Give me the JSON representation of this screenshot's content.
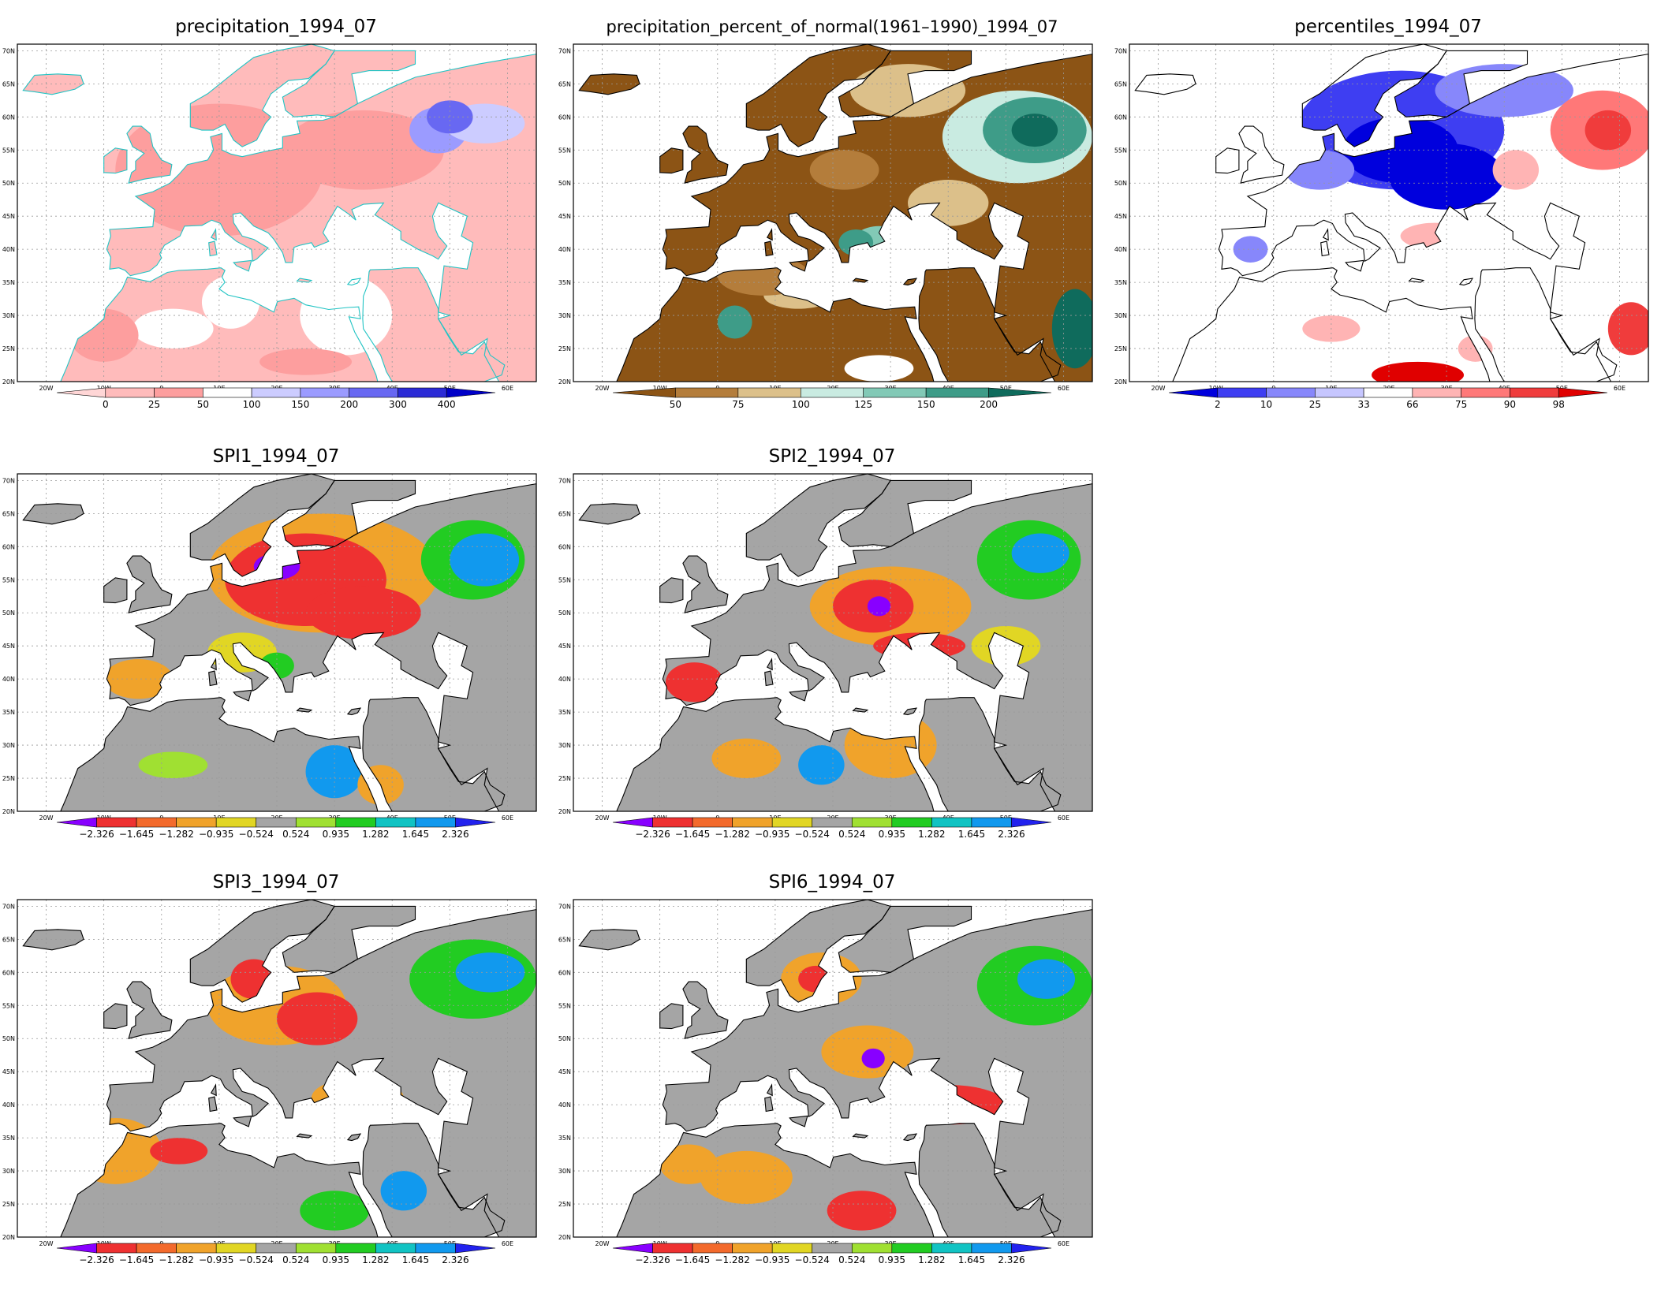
{
  "axes": {
    "lon_labels": [
      "20W",
      "10W",
      "0",
      "10E",
      "20E",
      "30E",
      "40E",
      "50E",
      "60E"
    ],
    "lat_labels": [
      "20N",
      "25N",
      "30N",
      "35N",
      "40N",
      "45N",
      "50N",
      "55N",
      "60N",
      "65N",
      "70N"
    ]
  },
  "legends": {
    "precip": {
      "labels": [
        "0",
        "25",
        "50",
        "100",
        "150",
        "200",
        "300",
        "400"
      ],
      "colors": [
        "#ffd6d6",
        "#ffbbbb",
        "#fd9e9e",
        "#ffffff",
        "#ccccff",
        "#9b9bff",
        "#6868f2",
        "#2b2bd6",
        "#0000c8"
      ]
    },
    "pct": {
      "labels": [
        "50",
        "75",
        "100",
        "125",
        "150",
        "200"
      ],
      "colors": [
        "#8c5415",
        "#b47d3b",
        "#dcc08a",
        "#c9ebe1",
        "#82c9b6",
        "#3e9c88",
        "#0f6b5c"
      ]
    },
    "perc": {
      "labels": [
        "2",
        "10",
        "25",
        "33",
        "66",
        "75",
        "90",
        "98"
      ],
      "colors": [
        "#0000dd",
        "#3e3ef2",
        "#8787fb",
        "#c6c6ff",
        "#ffffff",
        "#ffb4b4",
        "#ff7878",
        "#f03c3c",
        "#e00000"
      ]
    },
    "spi": {
      "labels": [
        "−2.326",
        "−1.645",
        "−1.282",
        "−0.935",
        "−0.524",
        "0.524",
        "0.935",
        "1.282",
        "1.645",
        "2.326"
      ],
      "colors": [
        "#8800ff",
        "#ee3131",
        "#f36a2c",
        "#f0a32b",
        "#e1d624",
        "#a5a5a5",
        "#a0e032",
        "#22cc22",
        "#11c3c3",
        "#1199ee",
        "#2222ee"
      ]
    }
  },
  "panels": [
    {
      "id": "p1",
      "title": "precipitation_1994_07",
      "legend": "precip",
      "coast": "#22c4c4"
    },
    {
      "id": "p2",
      "title": "precipitation_percent_of_normal(1961–1990)_1994_07",
      "legend": "pct",
      "coast": "#000000"
    },
    {
      "id": "p3",
      "title": "percentiles_1994_07",
      "legend": "perc",
      "coast": "#000000"
    },
    {
      "id": "p4",
      "title": "SPI1_1994_07",
      "legend": "spi",
      "coast": "#000000"
    },
    {
      "id": "p5",
      "title": "SPI2_1994_07",
      "legend": "spi",
      "coast": "#000000"
    },
    {
      "id": "p6",
      "title": "SPI3_1994_07",
      "legend": "spi",
      "coast": "#000000"
    },
    {
      "id": "p7",
      "title": "SPI6_1994_07",
      "legend": "spi",
      "coast": "#000000"
    }
  ]
}
